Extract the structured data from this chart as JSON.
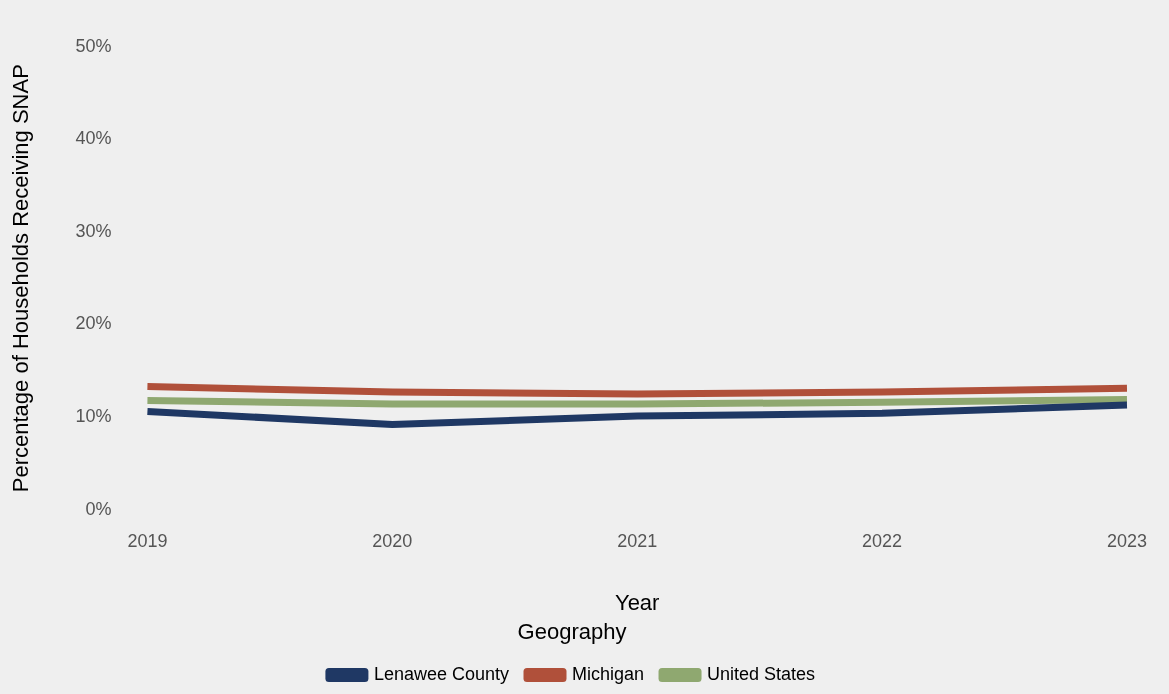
{
  "chart_data": {
    "type": "line",
    "xlabel": "Year",
    "ylabel": "Percentage of Households Receiving SNAP",
    "legend_title": "Geography",
    "categories": [
      "2019",
      "2020",
      "2021",
      "2022",
      "2023"
    ],
    "series": [
      {
        "name": "Lenawee County",
        "color": "#1f3864",
        "values": [
          10.6,
          9.2,
          10.1,
          10.4,
          11.3
        ]
      },
      {
        "name": "Michigan",
        "color": "#b0503a",
        "values": [
          13.3,
          12.7,
          12.5,
          12.7,
          13.1
        ]
      },
      {
        "name": "United States",
        "color": "#8fa870",
        "values": [
          11.8,
          11.4,
          11.4,
          11.6,
          11.9
        ]
      }
    ],
    "ylim": [
      0,
      50
    ],
    "yticks": [
      {
        "value": 0,
        "label": "0%"
      },
      {
        "value": 10,
        "label": "10%"
      },
      {
        "value": 20,
        "label": "20%"
      },
      {
        "value": 30,
        "label": "30%"
      },
      {
        "value": 40,
        "label": "40%"
      },
      {
        "value": 50,
        "label": "50%"
      }
    ],
    "grid": false,
    "legend": "bottom",
    "marker": "none",
    "line_style": "solid"
  }
}
